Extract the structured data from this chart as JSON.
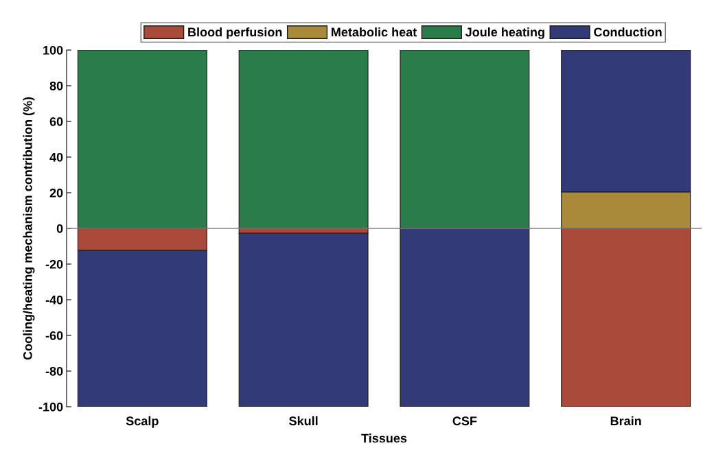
{
  "chart_data": {
    "type": "bar",
    "stacked": true,
    "xlabel": "Tissues",
    "ylabel": "Cooling/heating mechanism contribution (%)",
    "categories": [
      "Scalp",
      "Skull",
      "CSF",
      "Brain"
    ],
    "series": [
      {
        "name": "Blood perfusion",
        "color": "#a94a3a",
        "values": [
          -12.3,
          -2.7,
          0,
          -100
        ]
      },
      {
        "name": "Metabolic heat",
        "color": "#a98a3a",
        "values": [
          0,
          0,
          0,
          20.5
        ]
      },
      {
        "name": "Joule heating",
        "color": "#2a7d4a",
        "values": [
          100,
          100,
          100,
          0
        ]
      },
      {
        "name": "Conduction",
        "color": "#323a78",
        "values": [
          -87.7,
          -97.3,
          -100,
          79.5
        ]
      }
    ],
    "ylim": [
      -100,
      100
    ],
    "yticks": [
      -100,
      -80,
      -60,
      -40,
      -20,
      0,
      20,
      40,
      60,
      80,
      100
    ],
    "ref_lines": [
      {
        "axis": "y",
        "value": 0,
        "color": "#808080"
      }
    ],
    "grid": false,
    "legend": "top"
  }
}
